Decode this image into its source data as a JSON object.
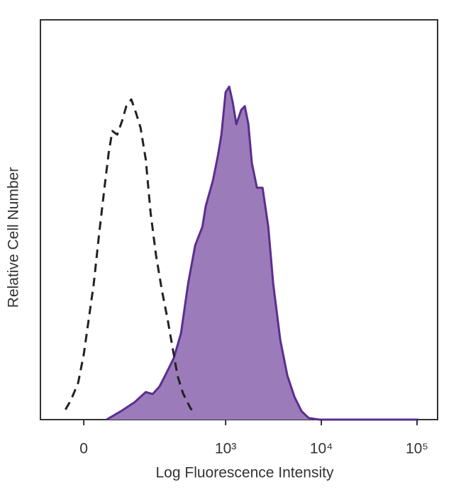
{
  "chart_data": {
    "type": "area",
    "xlabel": "Log Fluorescence Intensity",
    "ylabel": "Relative Cell Number",
    "xscale": "biexponential",
    "xlim": [
      -82,
      164000
    ],
    "xticks": [
      0,
      {
        "value": 1000,
        "label": "10³"
      },
      {
        "value": 10000,
        "label": "10⁴"
      },
      {
        "value": 100000,
        "label": "10⁵"
      }
    ],
    "ylim": [
      0,
      100
    ],
    "series": [
      {
        "color": "#9b7bb9",
        "line_color": "#5b2e8f",
        "dash": false,
        "x": [
          38,
          67,
          103,
          139,
          167,
          199,
          239,
          284,
          339,
          403,
          479,
          570,
          620,
          736,
          830,
          904,
          1000,
          1090,
          1188,
          1294,
          1457,
          1587,
          1729,
          1881,
          2125,
          2435,
          2792,
          3142,
          3729,
          4422,
          5240,
          6217,
          7379,
          9517,
          104000
        ],
        "values": [
          0,
          2.1,
          4.4,
          6.9,
          6.4,
          8.3,
          11.9,
          15.4,
          21.6,
          34.0,
          43.6,
          48.2,
          53.5,
          59.8,
          66.0,
          71.3,
          81.9,
          83.3,
          79.3,
          73.9,
          77.5,
          78.4,
          73.9,
          64.2,
          58.0,
          58.0,
          48.2,
          34.0,
          19.9,
          11.0,
          5.7,
          2.1,
          0.4,
          0,
          0
        ]
      },
      {
        "color": "none",
        "line_color": "#222222",
        "dash": true,
        "x": [
          -30,
          -21,
          -9,
          0,
          8,
          16,
          25,
          35,
          42,
          49,
          59,
          70,
          80,
          93,
          107,
          121,
          139,
          158,
          182,
          211,
          243,
          275,
          311,
          356,
          424,
          479
        ],
        "values": [
          2.5,
          4.8,
          9.2,
          16.3,
          25.2,
          34.0,
          46.5,
          58.9,
          66.8,
          72.2,
          71.3,
          74.8,
          78.4,
          80.1,
          76.6,
          73.0,
          65.1,
          51.8,
          41.1,
          32.3,
          25.2,
          18.1,
          11.0,
          6.6,
          3.0,
          1.2
        ]
      }
    ]
  }
}
